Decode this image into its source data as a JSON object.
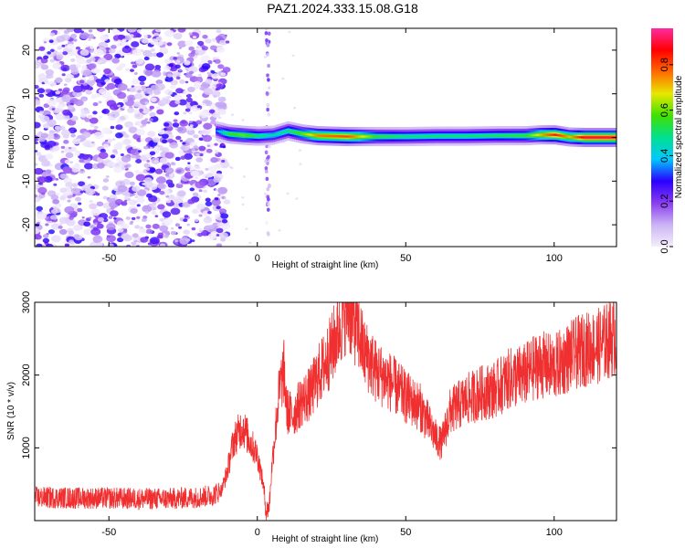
{
  "title": "PAZ1.2024.333.15.08.G18",
  "chart_data": [
    {
      "type": "heatmap",
      "xlabel": "Height of straight line (km)",
      "ylabel": "Frequency (Hz)",
      "xlim": [
        -75,
        121
      ],
      "ylim": [
        -25,
        25
      ],
      "xticks": [
        -50,
        0,
        50,
        100
      ],
      "yticks": [
        -20,
        -10,
        0,
        10,
        20
      ],
      "grid": false,
      "colorbar": {
        "label": "Normalized spectral amplitude",
        "range": [
          0.0,
          0.96
        ],
        "ticks": [
          0.0,
          0.2,
          0.4,
          0.6,
          0.8
        ],
        "colors": [
          "#f4eefc",
          "#cbb4f4",
          "#8a3cf0",
          "#2a00ff",
          "#00c8ff",
          "#00e090",
          "#40e000",
          "#e8e800",
          "#ff6a00",
          "#ff0000",
          "#ff2aa0"
        ]
      },
      "noise_region_x": [
        -75,
        -14
      ],
      "signal_ridge": {
        "x": [
          -14,
          -10,
          -5,
          0,
          5,
          10,
          15,
          20,
          30,
          40,
          50,
          60,
          70,
          80,
          90,
          95,
          100,
          105,
          110,
          115,
          121
        ],
        "frequency": [
          1.5,
          0.8,
          0.5,
          0.3,
          0.5,
          1.5,
          0.8,
          0.4,
          0.2,
          0.2,
          0.2,
          0.3,
          0.3,
          0.4,
          0.4,
          0.6,
          0.6,
          0.1,
          0.0,
          0.0,
          0.0
        ],
        "amplitude": [
          0.35,
          0.55,
          0.6,
          0.5,
          0.45,
          0.5,
          0.6,
          0.75,
          0.8,
          0.55,
          0.5,
          0.5,
          0.5,
          0.52,
          0.55,
          0.7,
          0.85,
          0.7,
          0.9,
          0.9,
          0.9
        ]
      }
    },
    {
      "type": "line",
      "xlabel": "Height of straight line (km)",
      "ylabel": "SNR (10 * v/v)",
      "xlim": [
        -75,
        121
      ],
      "ylim": [
        0,
        3000
      ],
      "xticks": [
        -50,
        0,
        50,
        100
      ],
      "yticks": [
        1000,
        2000,
        3000
      ],
      "grid": false,
      "series": [
        {
          "color": "#f03030",
          "x": [
            -75,
            -60,
            -50,
            -40,
            -30,
            -20,
            -15,
            -12,
            -10,
            -8,
            -5,
            -2,
            0,
            2,
            3,
            4,
            5,
            6,
            7,
            8,
            9,
            10,
            12,
            15,
            18,
            20,
            22,
            25,
            28,
            30,
            32,
            34,
            36,
            38,
            40,
            45,
            50,
            55,
            60,
            62,
            65,
            70,
            75,
            80,
            85,
            90,
            95,
            100,
            105,
            110,
            115,
            121
          ],
          "y": [
            320,
            310,
            310,
            300,
            300,
            320,
            350,
            420,
            700,
            1100,
            1300,
            1050,
            900,
            500,
            120,
            200,
            800,
            1200,
            1650,
            1900,
            2050,
            1500,
            1450,
            1650,
            1750,
            1950,
            2100,
            2350,
            2700,
            2950,
            2800,
            2600,
            2300,
            2200,
            2050,
            1900,
            1700,
            1550,
            1150,
            1050,
            1500,
            1650,
            1750,
            1800,
            1950,
            2000,
            2150,
            2100,
            2250,
            2350,
            2400,
            2550
          ]
        }
      ]
    }
  ]
}
